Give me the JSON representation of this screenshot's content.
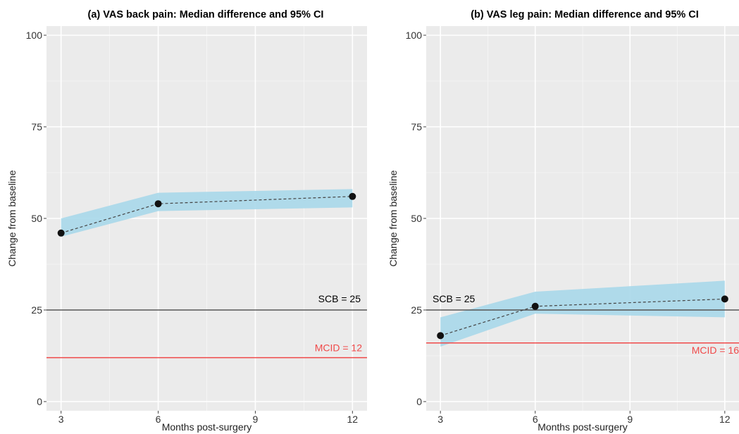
{
  "chart_data": [
    {
      "type": "line",
      "title": "(a) VAS back pain: Median difference and 95% CI",
      "xlabel": "Months post-surgery",
      "ylabel": "Change from baseline",
      "x": [
        3,
        6,
        9,
        12
      ],
      "x_ticks": [
        "3",
        "6",
        "9",
        "12"
      ],
      "y_ticks": [
        "0",
        "25",
        "50",
        "75",
        "100"
      ],
      "xlim": [
        2.55,
        12.45
      ],
      "ylim": [
        -2.5,
        102.5
      ],
      "series": [
        {
          "x": [
            3,
            6,
            12
          ],
          "values": [
            46,
            54,
            56
          ],
          "ci_lower": [
            45,
            52,
            53
          ],
          "ci_upper": [
            50,
            57,
            58
          ]
        }
      ],
      "reference_lines": [
        {
          "label": "SCB = 25",
          "value": 25,
          "color": "#555555"
        },
        {
          "label": "MCID = 12",
          "value": 12,
          "color": "#f04a4a"
        }
      ],
      "band_color": "#a8d8ea",
      "grid": true
    },
    {
      "type": "line",
      "title": "(b) VAS leg pain: Median difference and 95% CI",
      "xlabel": "Months post-surgery",
      "ylabel": "Change from baseline",
      "x": [
        3,
        6,
        9,
        12
      ],
      "x_ticks": [
        "3",
        "6",
        "9",
        "12"
      ],
      "y_ticks": [
        "0",
        "25",
        "50",
        "75",
        "100"
      ],
      "xlim": [
        2.55,
        12.45
      ],
      "ylim": [
        -2.5,
        102.5
      ],
      "series": [
        {
          "x": [
            3,
            6,
            12
          ],
          "values": [
            18,
            26,
            28
          ],
          "ci_lower": [
            15,
            24,
            23
          ],
          "ci_upper": [
            23,
            30,
            33
          ]
        }
      ],
      "reference_lines": [
        {
          "label": "SCB = 25",
          "value": 25,
          "color": "#555555"
        },
        {
          "label": "MCID = 16",
          "value": 16,
          "color": "#f04a4a"
        }
      ],
      "band_color": "#a8d8ea",
      "grid": true
    }
  ]
}
